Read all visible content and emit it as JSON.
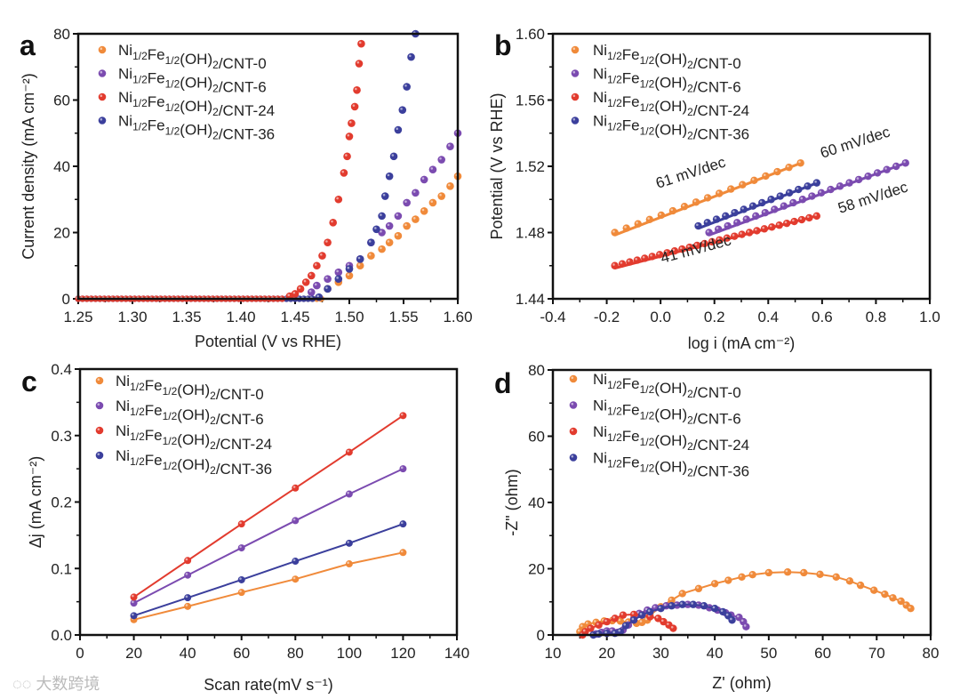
{
  "colors": {
    "CNT-0": "#f08a3a",
    "CNT-6": "#7b4bb0",
    "CNT-24": "#e23b2e",
    "CNT-36": "#3b3f9c"
  },
  "watermark": "大数跨境",
  "chart_data": [
    {
      "panel": "a",
      "type": "scatter",
      "xlabel": "Potential (V vs RHE)",
      "ylabel": "Current density (mA cm⁻²)",
      "xlim": [
        1.25,
        1.6
      ],
      "ylim": [
        0,
        80
      ],
      "xticks": [
        "1.25",
        "1.30",
        "1.35",
        "1.40",
        "1.45",
        "1.50",
        "1.55",
        "1.60"
      ],
      "yticks": [
        "0",
        "20",
        "40",
        "60",
        "80"
      ],
      "legend_position": "top-left",
      "series": [
        {
          "name": "Ni1/2Fe1/2(OH)2/CNT-0",
          "key": "CNT-0",
          "baseline_until": 1.475,
          "x": [
            1.48,
            1.49,
            1.5,
            1.51,
            1.52,
            1.53,
            1.537,
            1.545,
            1.553,
            1.561,
            1.569,
            1.577,
            1.585,
            1.593,
            1.6
          ],
          "y": [
            3,
            5,
            7,
            10,
            13,
            15,
            17,
            19,
            22,
            24,
            26.5,
            29,
            31,
            34,
            37
          ]
        },
        {
          "name": "Ni1/2Fe1/2(OH)2/CNT-6",
          "key": "CNT-6",
          "baseline_until": 1.46,
          "x": [
            1.465,
            1.47,
            1.48,
            1.49,
            1.5,
            1.51,
            1.52,
            1.53,
            1.537,
            1.545,
            1.553,
            1.561,
            1.569,
            1.577,
            1.585,
            1.593,
            1.6
          ],
          "y": [
            2,
            4,
            6,
            8,
            10,
            12,
            17,
            20,
            22,
            25,
            29,
            32,
            36,
            39,
            42,
            46,
            50
          ]
        },
        {
          "name": "Ni1/2Fe1/2(OH)2/CNT-24",
          "key": "CNT-24",
          "baseline_until": 1.44,
          "x": [
            1.445,
            1.45,
            1.455,
            1.46,
            1.465,
            1.47,
            1.475,
            1.48,
            1.485,
            1.49,
            1.495,
            1.498,
            1.5,
            1.502,
            1.505,
            1.507,
            1.509,
            1.511
          ],
          "y": [
            0.8,
            1.5,
            3,
            5,
            7,
            10,
            13,
            17,
            23,
            30,
            38,
            43,
            49,
            53,
            58,
            63,
            71,
            77
          ]
        },
        {
          "name": "Ni1/2Fe1/2(OH)2/CNT-36",
          "key": "CNT-36",
          "baseline_until": 1.468,
          "x": [
            1.472,
            1.48,
            1.49,
            1.5,
            1.51,
            1.52,
            1.525,
            1.53,
            1.533,
            1.537,
            1.541,
            1.545,
            1.549,
            1.553,
            1.557,
            1.561
          ],
          "y": [
            0.5,
            3,
            6,
            9,
            12,
            17,
            21,
            25,
            31,
            37,
            43,
            51,
            57,
            64,
            73,
            80
          ]
        }
      ]
    },
    {
      "panel": "b",
      "type": "scatter",
      "xlabel": "log i (mA cm⁻²)",
      "ylabel": "Potential (V vs RHE)",
      "xlim": [
        -0.4,
        1.0
      ],
      "ylim": [
        1.44,
        1.6
      ],
      "xticks": [
        "-0.4",
        "-0.2",
        "0.0",
        "0.2",
        "0.4",
        "0.6",
        "0.8",
        "1.0"
      ],
      "yticks": [
        "1.44",
        "1.48",
        "1.52",
        "1.56",
        "1.60"
      ],
      "legend_position": "top-left",
      "series": [
        {
          "name": "Ni1/2Fe1/2(OH)2/CNT-0",
          "key": "CNT-0",
          "x_range": [
            -0.17,
            0.52
          ],
          "n": 17,
          "y_range": [
            1.48,
            1.522
          ],
          "tafel_slope": "61 mV/dec"
        },
        {
          "name": "Ni1/2Fe1/2(OH)2/CNT-6",
          "key": "CNT-6",
          "x_range": [
            0.18,
            0.91
          ],
          "n": 22,
          "y_range": [
            1.48,
            1.522
          ],
          "tafel_slope": "58 mV/dec"
        },
        {
          "name": "Ni1/2Fe1/2(OH)2/CNT-24",
          "key": "CNT-24",
          "x_range": [
            -0.17,
            0.58
          ],
          "n": 28,
          "y_range": [
            1.46,
            1.49
          ],
          "tafel_slope": "41 mV/dec"
        },
        {
          "name": "Ni1/2Fe1/2(OH)2/CNT-36",
          "key": "CNT-36",
          "x_range": [
            0.14,
            0.58
          ],
          "n": 14,
          "y_range": [
            1.484,
            1.51
          ],
          "tafel_slope": "60 mV/dec"
        }
      ]
    },
    {
      "panel": "c",
      "type": "line",
      "xlabel": "Scan rate(mV s⁻¹)",
      "ylabel": "Δj (mA cm⁻²)",
      "xlim": [
        0,
        140
      ],
      "ylim": [
        0,
        0.4
      ],
      "xticks": [
        "0",
        "20",
        "40",
        "60",
        "80",
        "100",
        "120",
        "140"
      ],
      "yticks": [
        "0.0",
        "0.1",
        "0.2",
        "0.3",
        "0.4"
      ],
      "legend_position": "top-left",
      "x": [
        20,
        40,
        60,
        80,
        100,
        120
      ],
      "series": [
        {
          "name": "Ni1/2Fe1/2(OH)2/CNT-0",
          "key": "CNT-0",
          "values": [
            0.023,
            0.043,
            0.064,
            0.084,
            0.107,
            0.124
          ]
        },
        {
          "name": "Ni1/2Fe1/2(OH)2/CNT-6",
          "key": "CNT-6",
          "values": [
            0.048,
            0.09,
            0.131,
            0.172,
            0.212,
            0.25
          ]
        },
        {
          "name": "Ni1/2Fe1/2(OH)2/CNT-24",
          "key": "CNT-24",
          "values": [
            0.057,
            0.112,
            0.167,
            0.221,
            0.275,
            0.33
          ]
        },
        {
          "name": "Ni1/2Fe1/2(OH)2/CNT-36",
          "key": "CNT-36",
          "values": [
            0.029,
            0.056,
            0.083,
            0.111,
            0.138,
            0.167
          ]
        }
      ]
    },
    {
      "panel": "d",
      "type": "scatter",
      "xlabel": "Z' (ohm)",
      "ylabel": "-Z\" (ohm)",
      "xlim": [
        10,
        80
      ],
      "ylim": [
        0,
        80
      ],
      "xticks": [
        "10",
        "20",
        "30",
        "40",
        "50",
        "60",
        "70",
        "80"
      ],
      "yticks": [
        "0",
        "20",
        "40",
        "60",
        "80"
      ],
      "legend_position": "top-left",
      "series": [
        {
          "name": "Ni1/2Fe1/2(OH)2/CNT-0",
          "key": "CNT-0",
          "x": [
            15,
            15.5,
            16.5,
            18,
            19.5,
            21,
            22.5,
            24,
            25.5,
            26.5,
            27.5,
            28,
            30,
            32,
            34,
            37,
            40,
            42.5,
            45,
            47,
            50,
            53.5,
            56.5,
            59.5,
            62.5,
            65,
            67,
            69.5,
            71.5,
            73,
            74.5,
            75.5,
            76.3
          ],
          "y": [
            1,
            2.5,
            3.3,
            3.8,
            4.2,
            4.3,
            4.2,
            3.9,
            3.5,
            3.8,
            4.5,
            6,
            8.5,
            10.5,
            12.5,
            14,
            15.5,
            16.5,
            17.5,
            18.2,
            18.8,
            19,
            18.8,
            18.3,
            17.5,
            16.3,
            15,
            13.5,
            12.3,
            11.2,
            10.2,
            9,
            8
          ]
        },
        {
          "name": "Ni1/2Fe1/2(OH)2/CNT-6",
          "key": "CNT-6",
          "x": [
            18,
            19,
            20,
            21,
            22,
            23,
            24,
            25,
            26,
            27.5,
            29,
            31,
            33,
            35,
            37,
            39,
            40.5,
            42,
            43,
            44.5,
            45.3,
            45.8
          ],
          "y": [
            0.3,
            0.8,
            1.2,
            1.2,
            0.8,
            1.5,
            3,
            5,
            6.5,
            7.5,
            8.2,
            8.8,
            9,
            9.2,
            9,
            8.2,
            7.5,
            6.7,
            6,
            5.3,
            4,
            2.5
          ]
        },
        {
          "name": "Ni1/2Fe1/2(OH)2/CNT-24",
          "key": "CNT-24",
          "x": [
            15.5,
            16,
            17,
            18.5,
            20,
            21.5,
            23,
            25,
            26.5,
            28,
            29.5,
            30.5,
            31.5,
            32.3
          ],
          "y": [
            0,
            1,
            2,
            3,
            4,
            5,
            6,
            6.2,
            6,
            5.5,
            5,
            4,
            3,
            2
          ]
        },
        {
          "name": "Ni1/2Fe1/2(OH)2/CNT-36",
          "key": "CNT-36",
          "x": [
            17.5,
            18.5,
            20,
            21.5,
            22.5,
            23.5,
            25,
            26.5,
            28,
            30,
            32,
            34,
            36,
            38,
            40,
            41.5,
            42.5,
            43.2
          ],
          "y": [
            0,
            0.3,
            0.5,
            0.5,
            1,
            2.8,
            4.5,
            6,
            7,
            8,
            8.8,
            9.2,
            9.2,
            8.8,
            8,
            7,
            5.8,
            4.5
          ]
        }
      ]
    }
  ]
}
